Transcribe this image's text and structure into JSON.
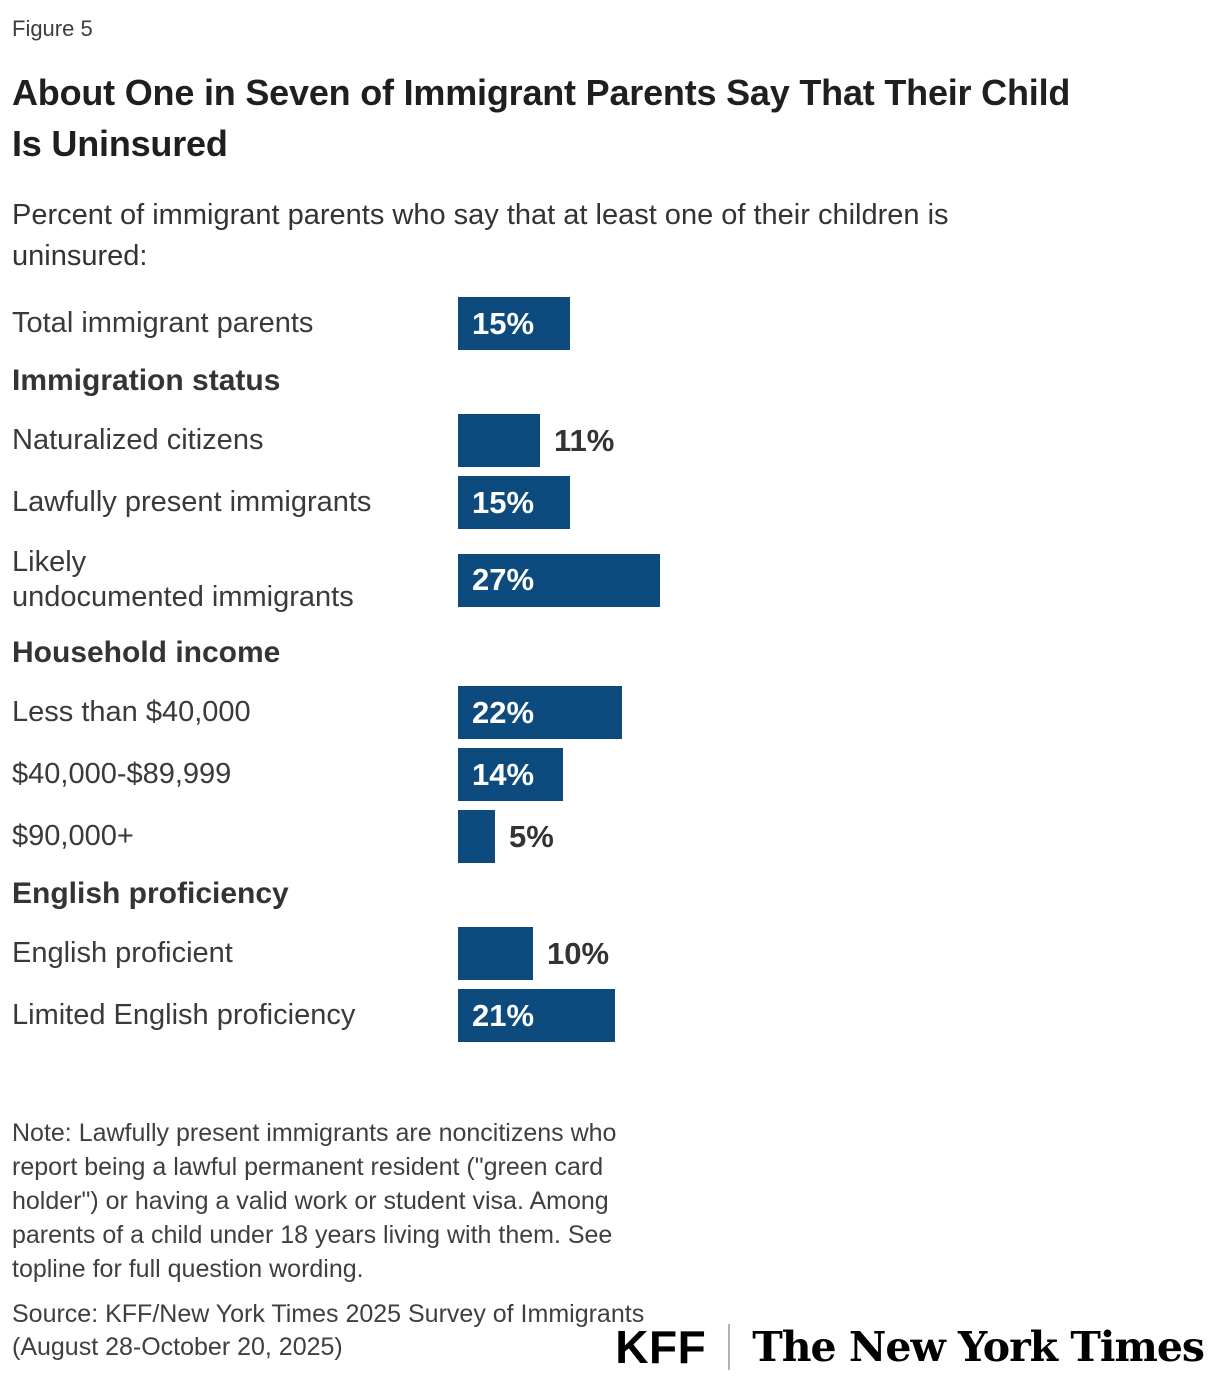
{
  "figure_label": "Figure 5",
  "title": "About One in Seven of Immigrant Parents Say That Their Child\nIs Uninsured",
  "subtitle": "Percent of immigrant parents who say that at least one of their children is\nuninsured:",
  "chart_data": {
    "type": "bar",
    "orientation": "horizontal",
    "value_unit": "%",
    "xlim": [
      0,
      30
    ],
    "grid": false,
    "bar_color": "#0d4a7e",
    "value_color_inside": "#ffffff",
    "value_color_outside": "#333333",
    "rows": [
      {
        "type": "bar",
        "label": "Total immigrant parents",
        "value": 15
      },
      {
        "type": "header",
        "label": "Immigration status"
      },
      {
        "type": "bar",
        "label": "Naturalized citizens",
        "value": 11
      },
      {
        "type": "bar",
        "label": "Lawfully present immigrants",
        "value": 15
      },
      {
        "type": "bar",
        "label": "Likely\nundocumented immigrants",
        "value": 27
      },
      {
        "type": "header",
        "label": "Household income"
      },
      {
        "type": "bar",
        "label": "Less than $40,000",
        "value": 22
      },
      {
        "type": "bar",
        "label": "$40,000-$89,999",
        "value": 14
      },
      {
        "type": "bar",
        "label": "$90,000+",
        "value": 5
      },
      {
        "type": "header",
        "label": "English proficiency"
      },
      {
        "type": "bar",
        "label": "English proficient",
        "value": 10
      },
      {
        "type": "bar",
        "label": "Limited English proficiency",
        "value": 21
      }
    ]
  },
  "note": "Note: Lawfully present immigrants are noncitizens who\nreport being a lawful permanent resident (\"green card\nholder\") or having a valid work or student visa. Among\nparents of a child under 18 years living with them. See\ntopline for full question wording.",
  "source": "Source: KFF/New York Times 2025 Survey of Immigrants\n(August 28-October 20, 2025)",
  "footer_logos": {
    "kff": "KFF",
    "nyt": "The New York Times"
  }
}
